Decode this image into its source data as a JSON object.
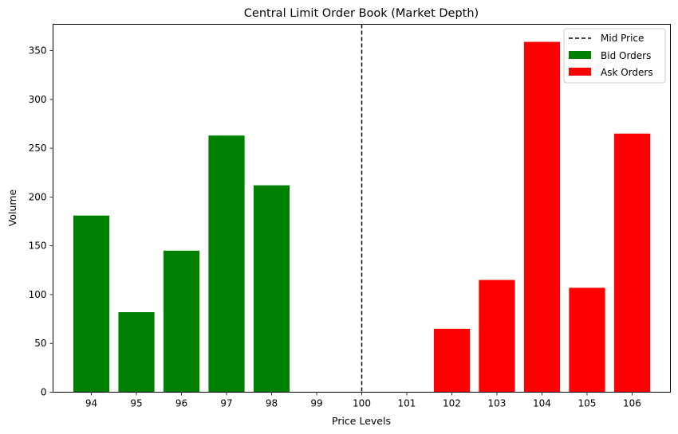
{
  "chart_data": {
    "type": "bar",
    "title": "Central Limit Order Book (Market Depth)",
    "xlabel": "Price Levels",
    "ylabel": "Volume",
    "x_ticks": [
      94,
      95,
      96,
      97,
      98,
      99,
      100,
      101,
      102,
      103,
      104,
      105,
      106
    ],
    "xlim": [
      93.15,
      106.85
    ],
    "ylim": [
      0,
      377
    ],
    "y_ticks": [
      0,
      50,
      100,
      150,
      200,
      250,
      300,
      350
    ],
    "grid": false,
    "legend_position": "top-right",
    "mid_price": {
      "name": "Mid Price",
      "value": 100,
      "color": "#000000",
      "style": "dashed"
    },
    "series": [
      {
        "name": "Bid Orders",
        "color": "#008000",
        "x": [
          94,
          95,
          96,
          97,
          98
        ],
        "values": [
          181,
          82,
          145,
          263,
          212
        ]
      },
      {
        "name": "Ask Orders",
        "color": "#ff0000",
        "x": [
          102,
          103,
          104,
          105,
          106
        ],
        "values": [
          65,
          115,
          359,
          107,
          265
        ]
      }
    ]
  }
}
